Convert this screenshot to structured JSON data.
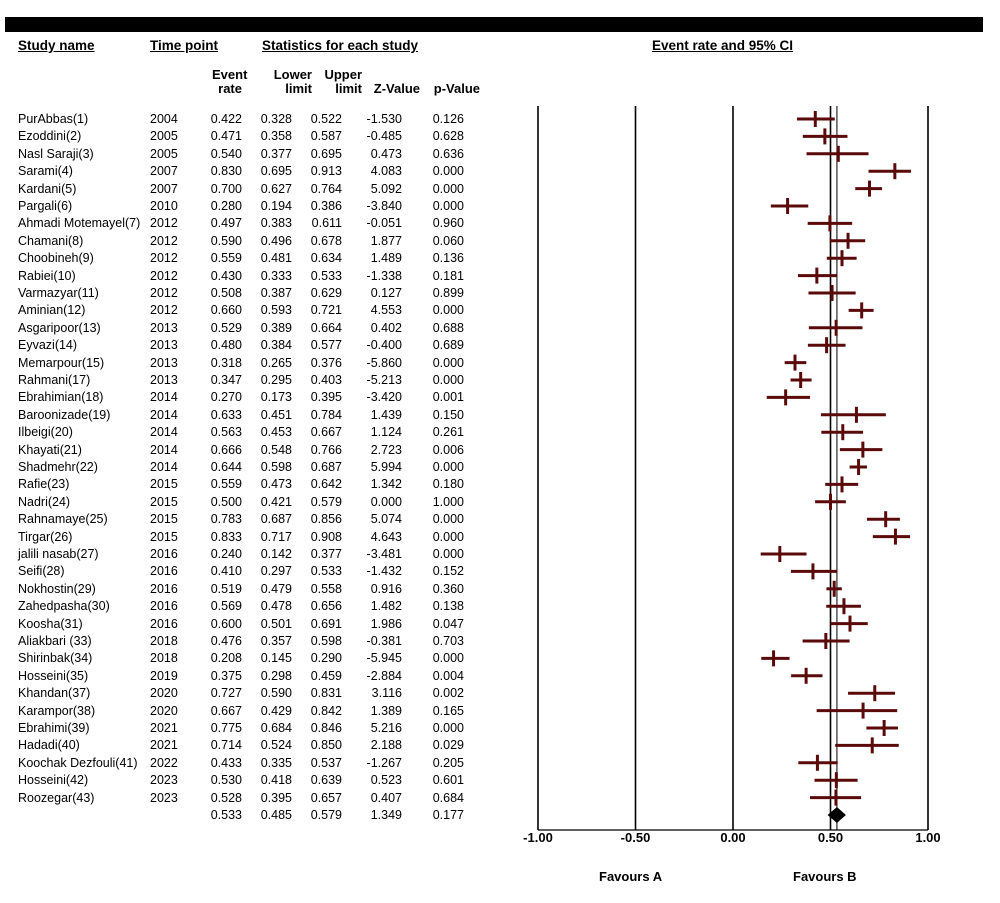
{
  "headers": {
    "study_name": "Study name",
    "time_point": "Time point",
    "statistics": "Statistics for each study",
    "plot_title": "Event rate and 95% CI"
  },
  "column_headers": {
    "event_rate": "Event\nrate",
    "lower": "Lower\nlimit",
    "upper": "Upper\nlimit",
    "z": "Z-Value",
    "p": "p-Value"
  },
  "favours": {
    "a": "Favours A",
    "b": "Favours B"
  },
  "chart_data": {
    "type": "forest",
    "title": "Event rate and 95% CI",
    "xlim": [
      -1.0,
      1.0
    ],
    "xticks": [
      "-1.00",
      "-0.50",
      "0.00",
      "0.50",
      "1.00"
    ],
    "xtick_values": [
      -1.0,
      -0.5,
      0.0,
      0.5,
      1.0
    ],
    "colors": {
      "study": "#5a0a0a",
      "summary": "#000000"
    },
    "studies": [
      {
        "name": "PurAbbas(1)",
        "year": "2004",
        "rate": "0.422",
        "lower": "0.328",
        "upper": "0.522",
        "z": "-1.530",
        "p": "0.126"
      },
      {
        "name": "Ezoddini(2)",
        "year": "2005",
        "rate": "0.471",
        "lower": "0.358",
        "upper": "0.587",
        "z": "-0.485",
        "p": "0.628"
      },
      {
        "name": "Nasl Saraji(3)",
        "year": "2005",
        "rate": "0.540",
        "lower": "0.377",
        "upper": "0.695",
        "z": "0.473",
        "p": "0.636"
      },
      {
        "name": "Sarami(4)",
        "year": "2007",
        "rate": "0.830",
        "lower": "0.695",
        "upper": "0.913",
        "z": "4.083",
        "p": "0.000"
      },
      {
        "name": "Kardani(5)",
        "year": "2007",
        "rate": "0.700",
        "lower": "0.627",
        "upper": "0.764",
        "z": "5.092",
        "p": "0.000"
      },
      {
        "name": "Pargali(6)",
        "year": "2010",
        "rate": "0.280",
        "lower": "0.194",
        "upper": "0.386",
        "z": "-3.840",
        "p": "0.000"
      },
      {
        "name": "Ahmadi Motemayel(7)",
        "year": "2012",
        "rate": "0.497",
        "lower": "0.383",
        "upper": "0.611",
        "z": "-0.051",
        "p": "0.960"
      },
      {
        "name": "Chamani(8)",
        "year": "2012",
        "rate": "0.590",
        "lower": "0.496",
        "upper": "0.678",
        "z": "1.877",
        "p": "0.060"
      },
      {
        "name": "Choobineh(9)",
        "year": "2012",
        "rate": "0.559",
        "lower": "0.481",
        "upper": "0.634",
        "z": "1.489",
        "p": "0.136"
      },
      {
        "name": "Rabiei(10)",
        "year": "2012",
        "rate": "0.430",
        "lower": "0.333",
        "upper": "0.533",
        "z": "-1.338",
        "p": "0.181"
      },
      {
        "name": "Varmazyar(11)",
        "year": "2012",
        "rate": "0.508",
        "lower": "0.387",
        "upper": "0.629",
        "z": "0.127",
        "p": "0.899"
      },
      {
        "name": "Aminian(12)",
        "year": "2012",
        "rate": "0.660",
        "lower": "0.593",
        "upper": "0.721",
        "z": "4.553",
        "p": "0.000"
      },
      {
        "name": "Asgaripoor(13)",
        "year": "2013",
        "rate": "0.529",
        "lower": "0.389",
        "upper": "0.664",
        "z": "0.402",
        "p": "0.688"
      },
      {
        "name": "Eyvazi(14)",
        "year": "2013",
        "rate": "0.480",
        "lower": "0.384",
        "upper": "0.577",
        "z": "-0.400",
        "p": "0.689"
      },
      {
        "name": "Memarpour(15)",
        "year": "2013",
        "rate": "0.318",
        "lower": "0.265",
        "upper": "0.376",
        "z": "-5.860",
        "p": "0.000"
      },
      {
        "name": "Rahmani(17)",
        "year": "2013",
        "rate": "0.347",
        "lower": "0.295",
        "upper": "0.403",
        "z": "-5.213",
        "p": "0.000"
      },
      {
        "name": "Ebrahimian(18)",
        "year": "2014",
        "rate": "0.270",
        "lower": "0.173",
        "upper": "0.395",
        "z": "-3.420",
        "p": "0.001"
      },
      {
        "name": "Baroonizade(19)",
        "year": "2014",
        "rate": "0.633",
        "lower": "0.451",
        "upper": "0.784",
        "z": "1.439",
        "p": "0.150"
      },
      {
        "name": "Ilbeigi(20)",
        "year": "2014",
        "rate": "0.563",
        "lower": "0.453",
        "upper": "0.667",
        "z": "1.124",
        "p": "0.261"
      },
      {
        "name": "Khayati(21)",
        "year": "2014",
        "rate": "0.666",
        "lower": "0.548",
        "upper": "0.766",
        "z": "2.723",
        "p": "0.006"
      },
      {
        "name": "Shadmehr(22)",
        "year": "2014",
        "rate": "0.644",
        "lower": "0.598",
        "upper": "0.687",
        "z": "5.994",
        "p": "0.000"
      },
      {
        "name": "Rafie(23)",
        "year": "2015",
        "rate": "0.559",
        "lower": "0.473",
        "upper": "0.642",
        "z": "1.342",
        "p": "0.180"
      },
      {
        "name": "Nadri(24)",
        "year": "2015",
        "rate": "0.500",
        "lower": "0.421",
        "upper": "0.579",
        "z": "0.000",
        "p": "1.000"
      },
      {
        "name": "Rahnamaye(25)",
        "year": "2015",
        "rate": "0.783",
        "lower": "0.687",
        "upper": "0.856",
        "z": "5.074",
        "p": "0.000"
      },
      {
        "name": "Tirgar(26)",
        "year": "2015",
        "rate": "0.833",
        "lower": "0.717",
        "upper": "0.908",
        "z": "4.643",
        "p": "0.000"
      },
      {
        "name": "jalili nasab(27)",
        "year": "2016",
        "rate": "0.240",
        "lower": "0.142",
        "upper": "0.377",
        "z": "-3.481",
        "p": "0.000"
      },
      {
        "name": "Seifi(28)",
        "year": "2016",
        "rate": "0.410",
        "lower": "0.297",
        "upper": "0.533",
        "z": "-1.432",
        "p": "0.152"
      },
      {
        "name": "Nokhostin(29)",
        "year": "2016",
        "rate": "0.519",
        "lower": "0.479",
        "upper": "0.558",
        "z": "0.916",
        "p": "0.360"
      },
      {
        "name": "Zahedpasha(30)",
        "year": "2016",
        "rate": "0.569",
        "lower": "0.478",
        "upper": "0.656",
        "z": "1.482",
        "p": "0.138"
      },
      {
        "name": "Koosha(31)",
        "year": "2016",
        "rate": "0.600",
        "lower": "0.501",
        "upper": "0.691",
        "z": "1.986",
        "p": "0.047"
      },
      {
        "name": "Aliakbari (33)",
        "year": "2018",
        "rate": "0.476",
        "lower": "0.357",
        "upper": "0.598",
        "z": "-0.381",
        "p": "0.703"
      },
      {
        "name": "Shirinbak(34)",
        "year": "2018",
        "rate": "0.208",
        "lower": "0.145",
        "upper": "0.290",
        "z": "-5.945",
        "p": "0.000"
      },
      {
        "name": "Hosseini(35)",
        "year": "2019",
        "rate": "0.375",
        "lower": "0.298",
        "upper": "0.459",
        "z": "-2.884",
        "p": "0.004"
      },
      {
        "name": "Khandan(37)",
        "year": "2020",
        "rate": "0.727",
        "lower": "0.590",
        "upper": "0.831",
        "z": "3.116",
        "p": "0.002"
      },
      {
        "name": "Karampor(38)",
        "year": "2020",
        "rate": "0.667",
        "lower": "0.429",
        "upper": "0.842",
        "z": "1.389",
        "p": "0.165"
      },
      {
        "name": "Ebrahimi(39)",
        "year": "2021",
        "rate": "0.775",
        "lower": "0.684",
        "upper": "0.846",
        "z": "5.216",
        "p": "0.000"
      },
      {
        "name": "Hadadi(40)",
        "year": "2021",
        "rate": "0.714",
        "lower": "0.524",
        "upper": "0.850",
        "z": "2.188",
        "p": "0.029"
      },
      {
        "name": "Koochak Dezfouli(41)",
        "year": "2022",
        "rate": "0.433",
        "lower": "0.335",
        "upper": "0.537",
        "z": "-1.267",
        "p": "0.205"
      },
      {
        "name": "Hosseini(42)",
        "year": "2023",
        "rate": "0.530",
        "lower": "0.418",
        "upper": "0.639",
        "z": "0.523",
        "p": "0.601"
      },
      {
        "name": "Roozegar(43)",
        "year": "2023",
        "rate": "0.528",
        "lower": "0.395",
        "upper": "0.657",
        "z": "0.407",
        "p": "0.684"
      }
    ],
    "summary": {
      "rate": "0.533",
      "lower": "0.485",
      "upper": "0.579",
      "z": "1.349",
      "p": "0.177"
    }
  }
}
